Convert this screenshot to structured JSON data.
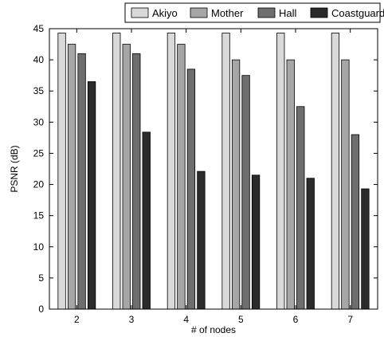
{
  "chart_data": {
    "type": "bar",
    "title": "",
    "xlabel": "# of nodes",
    "ylabel": "PSNR (dB)",
    "categories": [
      "2",
      "3",
      "4",
      "5",
      "6",
      "7"
    ],
    "ylim": [
      0,
      45
    ],
    "yticks": [
      0,
      5,
      10,
      15,
      20,
      25,
      30,
      35,
      40,
      45
    ],
    "grid": false,
    "legend_position": "top",
    "series": [
      {
        "name": "Akiyo",
        "color": "#d9d9d9",
        "values": [
          44.3,
          44.3,
          44.3,
          44.3,
          44.3,
          44.3
        ]
      },
      {
        "name": "Mother",
        "color": "#a6a6a6",
        "values": [
          42.5,
          42.5,
          42.5,
          40.0,
          40.0,
          40.0
        ]
      },
      {
        "name": "Hall",
        "color": "#6e6e6e",
        "values": [
          41.0,
          41.0,
          38.5,
          37.5,
          32.5,
          28.0
        ]
      },
      {
        "name": "Coastguard",
        "color": "#2b2b2b",
        "values": [
          36.5,
          28.4,
          22.1,
          21.5,
          21.0,
          19.3
        ]
      }
    ]
  }
}
